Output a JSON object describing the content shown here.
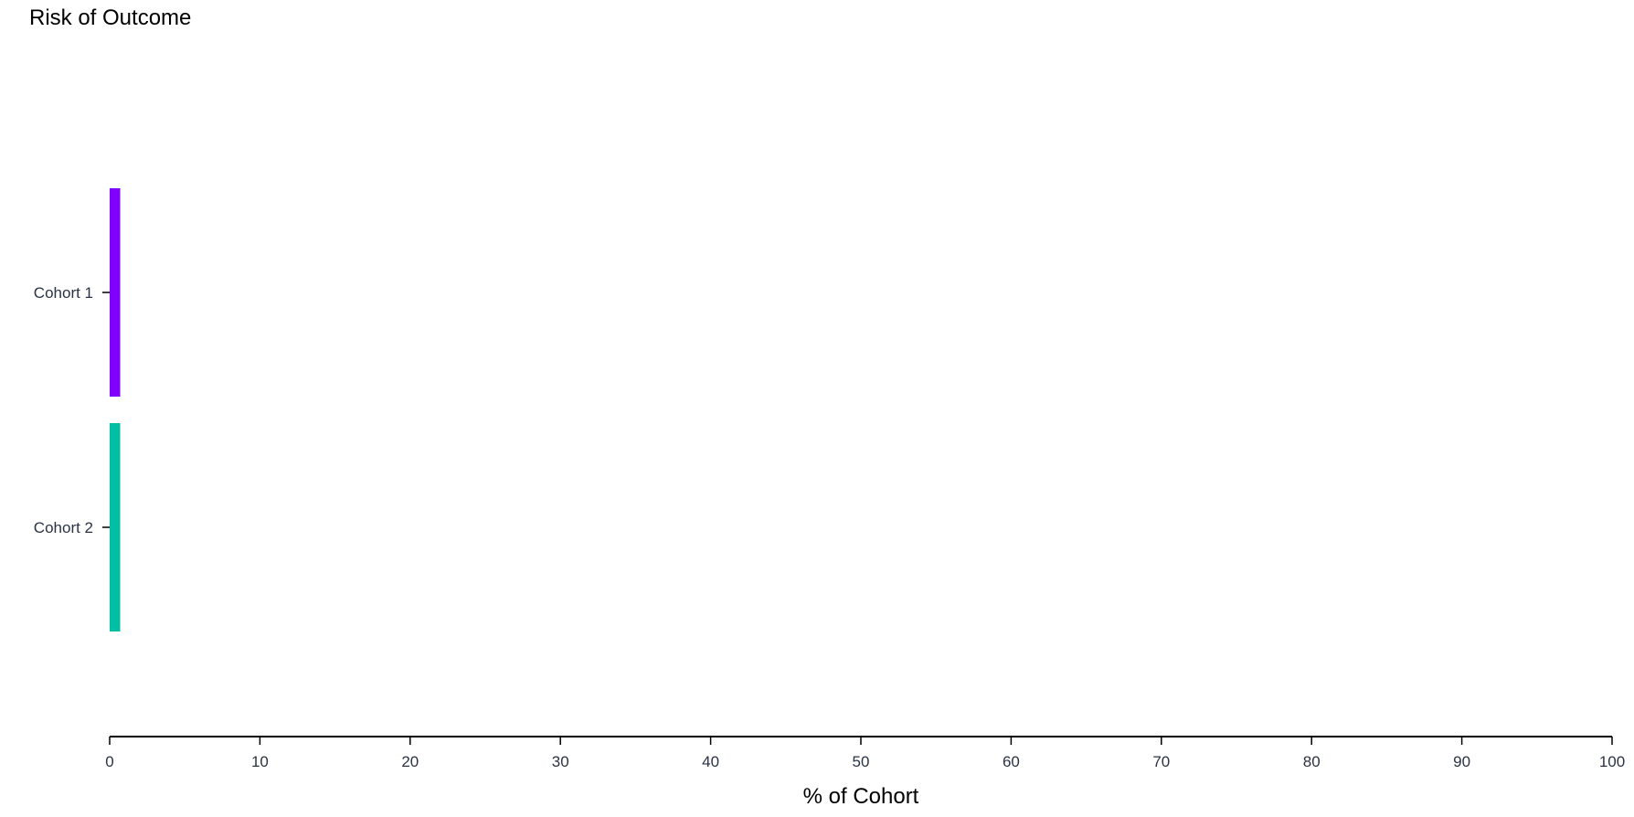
{
  "chart_data": {
    "type": "bar",
    "orientation": "horizontal",
    "title": "Risk of Outcome",
    "xlabel": "% of Cohort",
    "ylabel": "",
    "categories": [
      "Cohort 1",
      "Cohort 2"
    ],
    "values": [
      0.7,
      0.7
    ],
    "colors": [
      "#8000ff",
      "#00bfa5"
    ],
    "xlim": [
      0,
      100
    ],
    "xticks": [
      0,
      10,
      20,
      30,
      40,
      50,
      60,
      70,
      80,
      90,
      100
    ],
    "grid": false,
    "legend": "none"
  }
}
